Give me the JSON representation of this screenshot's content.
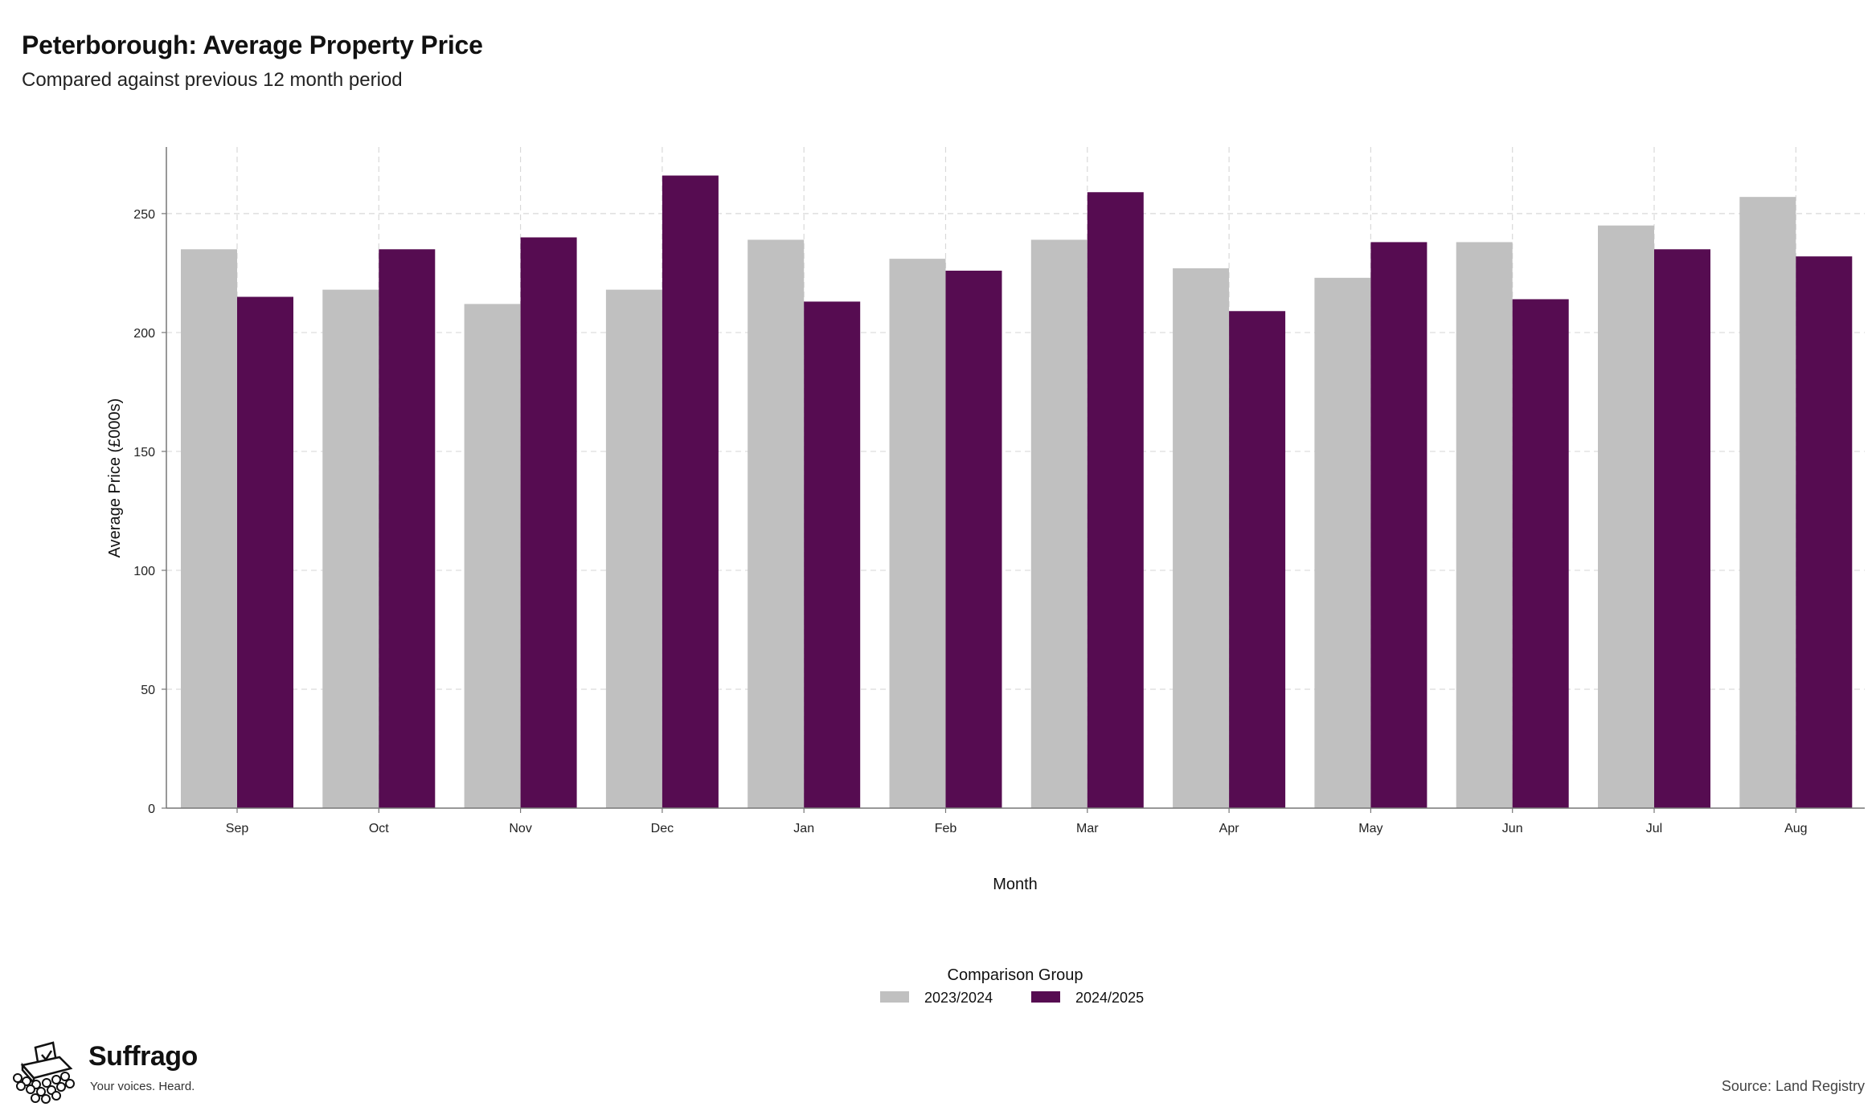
{
  "header": {
    "title": "Peterborough: Average Property Price",
    "subtitle": "Compared against previous 12 month period"
  },
  "chart_data": {
    "type": "bar",
    "title": "Peterborough: Average Property Price",
    "subtitle": "Compared against previous 12 month period",
    "xlabel": "Month",
    "ylabel": "Average Price (£000s)",
    "ylim": [
      0,
      278
    ],
    "yticks": [
      0,
      50,
      100,
      150,
      200,
      250
    ],
    "grid": true,
    "legend_title": "Comparison Group",
    "legend_position": "bottom-center",
    "categories": [
      "Sep",
      "Oct",
      "Nov",
      "Dec",
      "Jan",
      "Feb",
      "Mar",
      "Apr",
      "May",
      "Jun",
      "Jul",
      "Aug"
    ],
    "series": [
      {
        "name": "2023/2024",
        "color": "#c0c0c0",
        "values": [
          235,
          218,
          212,
          218,
          239,
          231,
          239,
          227,
          223,
          238,
          245,
          257
        ]
      },
      {
        "name": "2024/2025",
        "color": "#560c51",
        "values": [
          215,
          235,
          240,
          266,
          213,
          226,
          259,
          209,
          238,
          214,
          235,
          232
        ]
      }
    ]
  },
  "footer": {
    "brand_name": "Suffrago",
    "brand_tagline": "Your voices. Heard.",
    "source": "Source: Land Registry"
  }
}
